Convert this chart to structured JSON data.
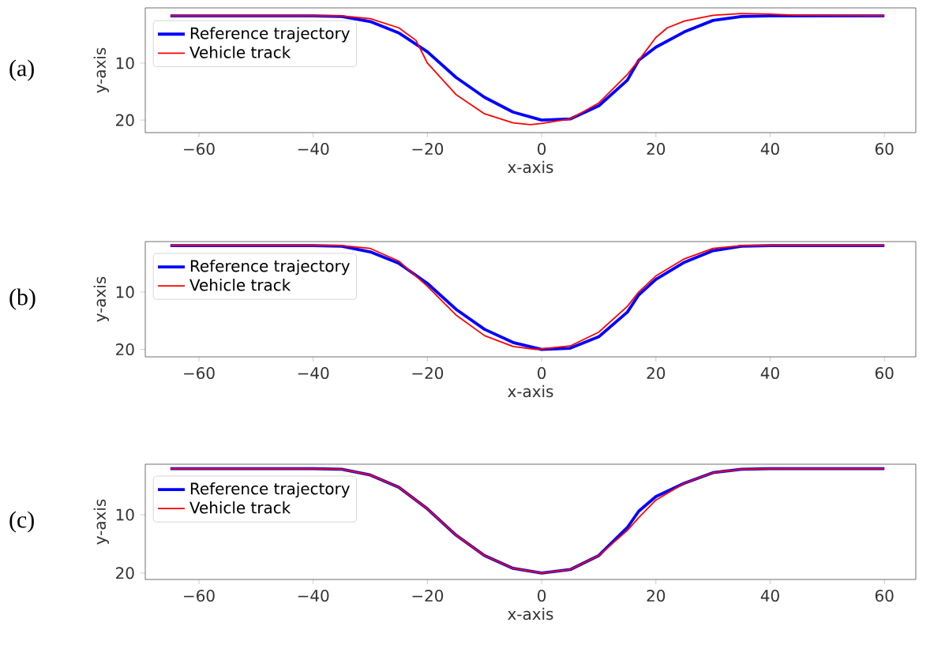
{
  "chart_data": [
    {
      "type": "line",
      "xlabel": "x-axis",
      "ylabel": "y-axis",
      "annotations": [
        "(a)"
      ],
      "xlim": [
        -69.4,
        65.5
      ],
      "ylim": [
        22.2,
        0.3
      ],
      "xticks": [
        {
          "value": -60,
          "label": "−60"
        },
        {
          "value": -40,
          "label": "−40"
        },
        {
          "value": -20,
          "label": "−20"
        },
        0,
        20,
        40,
        60
      ],
      "yticks": [
        10,
        20
      ],
      "legend": "top left",
      "grid": false,
      "marker": "none",
      "line_style": "solid",
      "series": [
        {
          "name": "Reference trajectory",
          "color": "#0000ff",
          "x": [
            -65,
            -40,
            -35,
            -30,
            -25,
            -20,
            -15,
            -10,
            -5,
            0,
            5,
            10,
            15,
            17,
            20,
            25,
            30,
            35,
            40,
            60
          ],
          "values": [
            1.7,
            1.7,
            1.8,
            2.7,
            4.7,
            8,
            12.5,
            16,
            18.6,
            20,
            19.8,
            17.5,
            13,
            9.5,
            7.2,
            4.5,
            2.5,
            1.8,
            1.7,
            1.7
          ]
        },
        {
          "name": "Vehicle track",
          "color": "#ff0000",
          "x": [
            -65,
            -35,
            -30,
            -25,
            -22,
            -20,
            -15,
            -10,
            -5,
            -2,
            0,
            5,
            10,
            15,
            17,
            20,
            22,
            25,
            30,
            35,
            40,
            45,
            60
          ],
          "values": [
            1.7,
            1.7,
            2.2,
            3.8,
            6,
            10,
            15.5,
            18.9,
            20.5,
            20.8,
            20.6,
            19.8,
            17,
            12,
            9.5,
            5.5,
            3.8,
            2.6,
            1.6,
            1.3,
            1.4,
            1.6,
            1.7
          ]
        }
      ]
    },
    {
      "type": "line",
      "xlabel": "x-axis",
      "ylabel": "y-axis",
      "annotations": [
        "(b)"
      ],
      "xlim": [
        -69.4,
        65.5
      ],
      "ylim": [
        21.3,
        1.2
      ],
      "xticks": [
        {
          "value": -60,
          "label": "−60"
        },
        {
          "value": -40,
          "label": "−40"
        },
        {
          "value": -20,
          "label": "−20"
        },
        0,
        20,
        40,
        60
      ],
      "yticks": [
        10,
        20
      ],
      "legend": "top left",
      "grid": false,
      "marker": "none",
      "line_style": "solid",
      "series": [
        {
          "name": "Reference trajectory",
          "color": "#0000ff",
          "x": [
            -65,
            -40,
            -35,
            -30,
            -25,
            -20,
            -15,
            -10,
            -5,
            0,
            5,
            10,
            15,
            17,
            20,
            25,
            30,
            35,
            40,
            60
          ],
          "values": [
            1.9,
            1.9,
            2.0,
            3.0,
            5.0,
            8.5,
            13,
            16.5,
            18.8,
            20,
            19.8,
            17.8,
            13.5,
            10.5,
            7.8,
            4.8,
            2.8,
            2.0,
            1.9,
            1.9
          ]
        },
        {
          "name": "Vehicle track",
          "color": "#ff0000",
          "x": [
            -65,
            -35,
            -30,
            -25,
            -20,
            -15,
            -10,
            -5,
            -1,
            5,
            10,
            15,
            17,
            20,
            25,
            30,
            35,
            40,
            60
          ],
          "values": [
            1.9,
            1.9,
            2.4,
            4.6,
            9,
            14,
            17.6,
            19.5,
            20,
            19.4,
            17,
            12.5,
            10,
            7.2,
            4.2,
            2.4,
            1.9,
            1.9,
            1.9
          ]
        }
      ]
    },
    {
      "type": "line",
      "xlabel": "x-axis",
      "ylabel": "y-axis",
      "annotations": [
        "(c)"
      ],
      "xlim": [
        -69.4,
        65.5
      ],
      "ylim": [
        21.1,
        1.35
      ],
      "xticks": [
        {
          "value": -60,
          "label": "−60"
        },
        {
          "value": -40,
          "label": "−40"
        },
        {
          "value": -20,
          "label": "−20"
        },
        0,
        20,
        40,
        60
      ],
      "yticks": [
        10,
        20
      ],
      "legend": "top left",
      "grid": false,
      "marker": "none",
      "line_style": "solid",
      "series": [
        {
          "name": "Reference trajectory",
          "color": "#0000ff",
          "x": [
            -65,
            -40,
            -35,
            -30,
            -25,
            -20,
            -15,
            -10,
            -5,
            0,
            5,
            10,
            15,
            17,
            20,
            25,
            30,
            35,
            40,
            60
          ],
          "values": [
            2.1,
            2.1,
            2.2,
            3.2,
            5.3,
            9,
            13.5,
            17,
            19.2,
            20,
            19.4,
            17,
            12.2,
            9.4,
            6.9,
            4.6,
            2.8,
            2.2,
            2.1,
            2.1
          ]
        },
        {
          "name": "Vehicle track",
          "color": "#ff0000",
          "x": [
            -65,
            -40,
            -35,
            -30,
            -25,
            -20,
            -15,
            -10,
            -5,
            0,
            5,
            10,
            15,
            17,
            20,
            25,
            30,
            35,
            40,
            60
          ],
          "values": [
            2.1,
            2.1,
            2.2,
            3.2,
            5.3,
            9,
            13.5,
            17,
            19.2,
            20,
            19.4,
            17,
            12.7,
            10.5,
            7.5,
            4.6,
            2.8,
            2.2,
            2.1,
            2.1
          ]
        }
      ]
    }
  ]
}
